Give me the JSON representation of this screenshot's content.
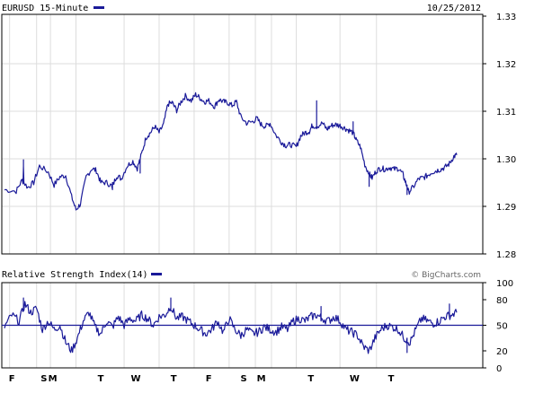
{
  "header": {
    "title": "EURUSD 15-Minute",
    "date": "10/25/2012"
  },
  "indicator": {
    "title": "Relative Strength Index(14)"
  },
  "credit": "© BigCharts.com",
  "colors": {
    "line": "#1a1a99",
    "grid": "#dddddd",
    "frame": "#000000"
  },
  "chart_data": [
    {
      "type": "line",
      "name": "price",
      "series": [
        {
          "name": "EURUSD 15-Minute",
          "color": "#1a1a99"
        }
      ],
      "ylim": [
        1.28,
        1.33
      ],
      "yticks": [
        "1.33",
        "1.32",
        "1.31",
        "1.30",
        "1.29",
        "1.28"
      ],
      "grid": true,
      "x_range": [
        0,
        31
      ],
      "anchors": [
        [
          0,
          1.2935
        ],
        [
          0.8,
          1.2932
        ],
        [
          1.2,
          1.2955
        ],
        [
          1.6,
          1.294
        ],
        [
          2.0,
          1.295
        ],
        [
          2.4,
          1.2985
        ],
        [
          3.0,
          1.2972
        ],
        [
          3.4,
          1.2945
        ],
        [
          3.8,
          1.2962
        ],
        [
          4.2,
          1.2965
        ],
        [
          4.6,
          1.292
        ],
        [
          4.9,
          1.2893
        ],
        [
          5.2,
          1.2905
        ],
        [
          5.6,
          1.2962
        ],
        [
          6.0,
          1.298
        ],
        [
          6.3,
          1.2975
        ],
        [
          6.6,
          1.295
        ],
        [
          7.0,
          1.295
        ],
        [
          7.4,
          1.2942
        ],
        [
          7.7,
          1.2965
        ],
        [
          8.0,
          1.2958
        ],
        [
          8.4,
          1.2985
        ],
        [
          8.8,
          1.2995
        ],
        [
          9.1,
          1.298
        ],
        [
          9.4,
          1.301
        ],
        [
          9.7,
          1.3045
        ],
        [
          10.0,
          1.3055
        ],
        [
          10.3,
          1.3068
        ],
        [
          10.6,
          1.3055
        ],
        [
          10.9,
          1.3072
        ],
        [
          11.2,
          1.3115
        ],
        [
          11.5,
          1.3118
        ],
        [
          11.8,
          1.3102
        ],
        [
          12.1,
          1.312
        ],
        [
          12.4,
          1.3132
        ],
        [
          12.8,
          1.3122
        ],
        [
          13.1,
          1.3135
        ],
        [
          13.4,
          1.3128
        ],
        [
          13.7,
          1.312
        ],
        [
          14.0,
          1.3122
        ],
        [
          14.4,
          1.311
        ],
        [
          14.7,
          1.3125
        ],
        [
          15.0,
          1.312
        ],
        [
          15.3,
          1.3118
        ],
        [
          15.6,
          1.3112
        ],
        [
          15.9,
          1.312
        ],
        [
          16.2,
          1.3088
        ],
        [
          16.6,
          1.3075
        ],
        [
          17.0,
          1.3078
        ],
        [
          17.3,
          1.3085
        ],
        [
          17.6,
          1.3072
        ],
        [
          17.9,
          1.3068
        ],
        [
          18.2,
          1.3075
        ],
        [
          18.6,
          1.305
        ],
        [
          19.0,
          1.3035
        ],
        [
          19.3,
          1.3028
        ],
        [
          19.6,
          1.303
        ],
        [
          20.0,
          1.3025
        ],
        [
          20.3,
          1.3048
        ],
        [
          20.6,
          1.3055
        ],
        [
          20.9,
          1.3058
        ],
        [
          21.1,
          1.307
        ],
        [
          21.4,
          1.3068
        ],
        [
          21.8,
          1.3075
        ],
        [
          22.1,
          1.3062
        ],
        [
          22.4,
          1.307
        ],
        [
          22.7,
          1.3072
        ],
        [
          23.0,
          1.307
        ],
        [
          23.3,
          1.3065
        ],
        [
          23.6,
          1.306
        ],
        [
          23.9,
          1.3055
        ],
        [
          24.1,
          1.304
        ],
        [
          24.4,
          1.3025
        ],
        [
          24.7,
          1.2988
        ],
        [
          25.0,
          1.2968
        ],
        [
          25.2,
          1.296
        ],
        [
          25.5,
          1.2975
        ],
        [
          25.8,
          1.298
        ],
        [
          26.1,
          1.2978
        ],
        [
          26.4,
          1.2982
        ],
        [
          26.7,
          1.2978
        ],
        [
          27.0,
          1.298
        ],
        [
          27.3,
          1.2968
        ],
        [
          27.5,
          1.295
        ],
        [
          27.7,
          1.293
        ],
        [
          28.0,
          1.294
        ],
        [
          28.4,
          1.2958
        ],
        [
          28.7,
          1.296
        ],
        [
          29.0,
          1.2965
        ],
        [
          29.3,
          1.2972
        ],
        [
          29.6,
          1.2975
        ],
        [
          29.9,
          1.2978
        ],
        [
          30.2,
          1.2982
        ],
        [
          30.5,
          1.299
        ],
        [
          30.8,
          1.3005
        ],
        [
          31.0,
          1.3008
        ]
      ],
      "spikes": [
        [
          1.3,
          1.2985,
          1.2998
        ],
        [
          7.4,
          1.2935,
          1.295
        ],
        [
          9.3,
          1.299,
          1.297
        ],
        [
          21.4,
          1.3068,
          1.3122
        ],
        [
          23.9,
          1.3055,
          1.3078
        ],
        [
          25.0,
          1.2968,
          1.2942
        ],
        [
          27.6,
          1.2945,
          1.2925
        ]
      ]
    },
    {
      "type": "line",
      "name": "rsi",
      "series": [
        {
          "name": "Relative Strength Index(14)",
          "color": "#1a1a99"
        }
      ],
      "ylim": [
        0,
        100
      ],
      "yticks": [
        "100",
        "80",
        "50",
        "20",
        "0"
      ],
      "reference_line": 50,
      "x_range": [
        0,
        31
      ],
      "anchors": [
        [
          0,
          48
        ],
        [
          0.5,
          62
        ],
        [
          1.0,
          55
        ],
        [
          1.4,
          75
        ],
        [
          1.8,
          65
        ],
        [
          2.2,
          70
        ],
        [
          2.6,
          45
        ],
        [
          3.0,
          55
        ],
        [
          3.4,
          45
        ],
        [
          3.8,
          50
        ],
        [
          4.2,
          30
        ],
        [
          4.6,
          20
        ],
        [
          5.0,
          35
        ],
        [
          5.4,
          55
        ],
        [
          5.8,
          65
        ],
        [
          6.2,
          48
        ],
        [
          6.6,
          40
        ],
        [
          7.0,
          55
        ],
        [
          7.4,
          48
        ],
        [
          7.8,
          60
        ],
        [
          8.2,
          50
        ],
        [
          8.6,
          58
        ],
        [
          9.0,
          55
        ],
        [
          9.4,
          62
        ],
        [
          9.8,
          58
        ],
        [
          10.2,
          50
        ],
        [
          10.6,
          60
        ],
        [
          11.0,
          62
        ],
        [
          11.4,
          72
        ],
        [
          11.8,
          58
        ],
        [
          12.2,
          60
        ],
        [
          12.6,
          55
        ],
        [
          13.0,
          50
        ],
        [
          13.4,
          45
        ],
        [
          13.8,
          40
        ],
        [
          14.2,
          45
        ],
        [
          14.6,
          55
        ],
        [
          15.0,
          42
        ],
        [
          15.4,
          58
        ],
        [
          15.8,
          45
        ],
        [
          16.2,
          38
        ],
        [
          16.6,
          45
        ],
        [
          17.0,
          40
        ],
        [
          17.4,
          42
        ],
        [
          17.8,
          48
        ],
        [
          18.2,
          45
        ],
        [
          18.6,
          42
        ],
        [
          19.0,
          48
        ],
        [
          19.4,
          45
        ],
        [
          19.8,
          55
        ],
        [
          20.2,
          58
        ],
        [
          20.6,
          55
        ],
        [
          21.0,
          60
        ],
        [
          21.4,
          62
        ],
        [
          21.8,
          58
        ],
        [
          22.2,
          55
        ],
        [
          22.6,
          60
        ],
        [
          23.0,
          55
        ],
        [
          23.4,
          45
        ],
        [
          23.8,
          42
        ],
        [
          24.2,
          38
        ],
        [
          24.6,
          25
        ],
        [
          25.0,
          20
        ],
        [
          25.4,
          35
        ],
        [
          25.8,
          45
        ],
        [
          26.2,
          50
        ],
        [
          26.6,
          48
        ],
        [
          27.0,
          45
        ],
        [
          27.4,
          35
        ],
        [
          27.8,
          30
        ],
        [
          28.2,
          45
        ],
        [
          28.6,
          58
        ],
        [
          29.0,
          55
        ],
        [
          29.4,
          52
        ],
        [
          29.8,
          55
        ],
        [
          30.2,
          60
        ],
        [
          30.6,
          62
        ],
        [
          31.0,
          65
        ]
      ],
      "spikes": [
        [
          1.3,
          70,
          82
        ],
        [
          11.4,
          70,
          82
        ],
        [
          21.7,
          55,
          72
        ],
        [
          27.6,
          35,
          18
        ],
        [
          30.5,
          60,
          75
        ]
      ]
    }
  ],
  "x_axis": {
    "labels": [
      "F",
      "S",
      "M",
      "T",
      "W",
      "T",
      "F",
      "S",
      "M",
      "T",
      "W",
      "T"
    ],
    "positions": [
      0.5,
      2.7,
      3.3,
      6.6,
      9.0,
      11.6,
      14.0,
      16.4,
      17.6,
      21.0,
      24.0,
      26.5
    ]
  }
}
